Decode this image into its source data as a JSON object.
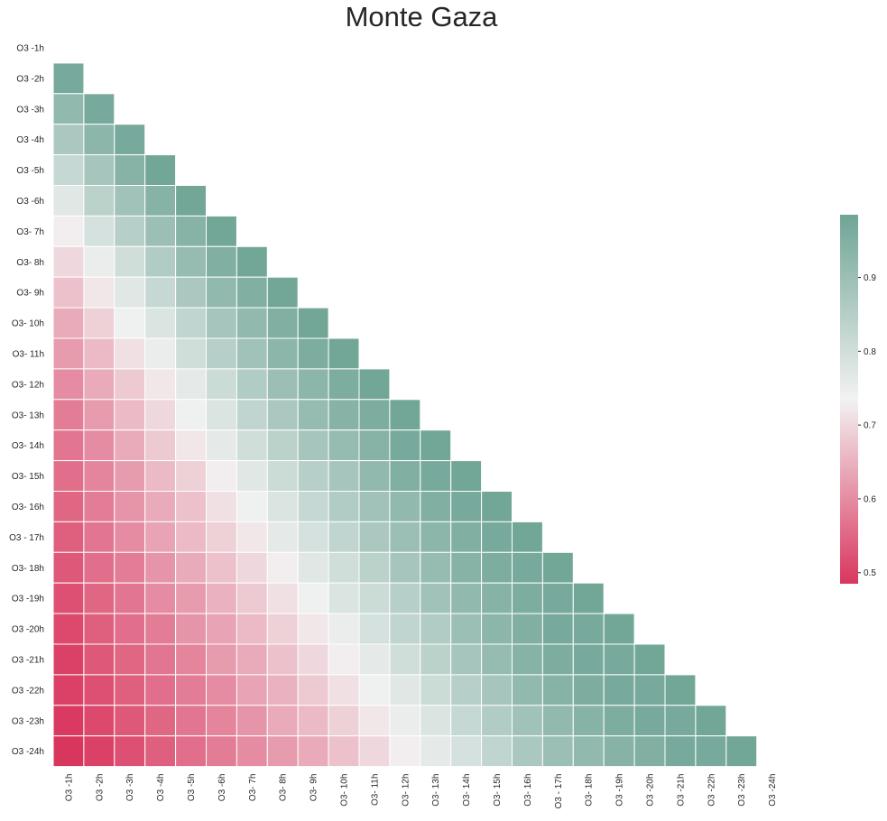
{
  "chart_data": {
    "type": "heatmap",
    "title": "Monte Gaza",
    "xlabel": "",
    "ylabel": "",
    "row_labels": [
      "O3 -1h",
      "O3 -2h",
      "O3 -3h",
      "O3 -4h",
      "O3 -5h",
      "O3 -6h",
      "O3- 7h",
      "O3- 8h",
      "O3- 9h",
      "O3- 10h",
      "O3- 11h",
      "O3- 12h",
      "O3- 13h",
      "O3- 14h",
      "O3- 15h",
      "O3- 16h",
      "O3 - 17h",
      "O3- 18h",
      "O3 -19h",
      "O3 -20h",
      "O3 -21h",
      "O3 -22h",
      "O3 -23h",
      "O3 -24h"
    ],
    "col_labels": [
      "O3 -1h",
      "O3 -2h",
      "O3 -3h",
      "O3 -4h",
      "O3 -5h",
      "O3 -6h",
      "O3- 7h",
      "O3- 8h",
      "O3- 9h",
      "O3- 10h",
      "O3- 11h",
      "O3- 12h",
      "O3- 13h",
      "O3- 14h",
      "O3- 15h",
      "O3- 16h",
      "O3 - 17h",
      "O3- 18h",
      "O3 -19h",
      "O3 -20h",
      "O3 -21h",
      "O3 -22h",
      "O3 -23h",
      "O3 -24h"
    ],
    "mask": "upper triangle including diagonal",
    "values": [
      [],
      [
        0.97
      ],
      [
        0.92,
        0.97
      ],
      [
        0.87,
        0.93,
        0.97
      ],
      [
        0.82,
        0.88,
        0.94,
        0.98
      ],
      [
        0.77,
        0.84,
        0.89,
        0.94,
        0.98
      ],
      [
        0.73,
        0.79,
        0.85,
        0.9,
        0.94,
        0.98
      ],
      [
        0.7,
        0.75,
        0.8,
        0.86,
        0.91,
        0.95,
        0.98
      ],
      [
        0.67,
        0.72,
        0.77,
        0.82,
        0.87,
        0.92,
        0.95,
        0.98
      ],
      [
        0.64,
        0.69,
        0.74,
        0.78,
        0.83,
        0.88,
        0.92,
        0.95,
        0.98
      ],
      [
        0.62,
        0.66,
        0.71,
        0.75,
        0.8,
        0.85,
        0.89,
        0.93,
        0.96,
        0.98
      ],
      [
        0.6,
        0.64,
        0.68,
        0.72,
        0.76,
        0.81,
        0.86,
        0.9,
        0.93,
        0.96,
        0.98
      ],
      [
        0.58,
        0.62,
        0.66,
        0.7,
        0.74,
        0.78,
        0.83,
        0.87,
        0.91,
        0.94,
        0.96,
        0.98
      ],
      [
        0.57,
        0.6,
        0.64,
        0.68,
        0.72,
        0.76,
        0.8,
        0.84,
        0.88,
        0.91,
        0.94,
        0.97,
        0.98
      ],
      [
        0.56,
        0.59,
        0.62,
        0.66,
        0.69,
        0.73,
        0.77,
        0.81,
        0.85,
        0.88,
        0.92,
        0.95,
        0.97,
        0.98
      ],
      [
        0.55,
        0.58,
        0.61,
        0.64,
        0.67,
        0.71,
        0.74,
        0.78,
        0.82,
        0.86,
        0.89,
        0.92,
        0.95,
        0.97,
        0.98
      ],
      [
        0.54,
        0.57,
        0.6,
        0.63,
        0.66,
        0.69,
        0.72,
        0.76,
        0.79,
        0.83,
        0.87,
        0.9,
        0.93,
        0.95,
        0.97,
        0.98
      ],
      [
        0.53,
        0.56,
        0.58,
        0.61,
        0.64,
        0.67,
        0.7,
        0.73,
        0.77,
        0.8,
        0.84,
        0.88,
        0.91,
        0.94,
        0.96,
        0.97,
        0.98
      ],
      [
        0.52,
        0.55,
        0.57,
        0.6,
        0.62,
        0.65,
        0.68,
        0.71,
        0.74,
        0.78,
        0.81,
        0.85,
        0.89,
        0.92,
        0.94,
        0.96,
        0.97,
        0.98
      ],
      [
        0.51,
        0.54,
        0.56,
        0.58,
        0.61,
        0.63,
        0.66,
        0.69,
        0.72,
        0.75,
        0.79,
        0.83,
        0.86,
        0.9,
        0.93,
        0.95,
        0.97,
        0.97,
        0.98
      ],
      [
        0.5,
        0.53,
        0.55,
        0.57,
        0.59,
        0.62,
        0.64,
        0.67,
        0.7,
        0.73,
        0.76,
        0.8,
        0.84,
        0.88,
        0.91,
        0.94,
        0.96,
        0.97,
        0.97,
        0.98
      ],
      [
        0.5,
        0.52,
        0.54,
        0.56,
        0.58,
        0.6,
        0.63,
        0.65,
        0.68,
        0.71,
        0.74,
        0.77,
        0.81,
        0.85,
        0.88,
        0.92,
        0.94,
        0.96,
        0.97,
        0.97,
        0.98
      ],
      [
        0.49,
        0.51,
        0.53,
        0.55,
        0.57,
        0.59,
        0.61,
        0.64,
        0.66,
        0.69,
        0.72,
        0.75,
        0.78,
        0.82,
        0.86,
        0.89,
        0.92,
        0.94,
        0.96,
        0.97,
        0.97,
        0.98
      ],
      [
        0.48,
        0.5,
        0.52,
        0.54,
        0.56,
        0.58,
        0.6,
        0.62,
        0.64,
        0.67,
        0.7,
        0.73,
        0.76,
        0.79,
        0.83,
        0.87,
        0.9,
        0.92,
        0.94,
        0.95,
        0.97,
        0.97,
        0.98
      ]
    ],
    "colorbar": {
      "vmin": 0.485,
      "vmax": 0.985,
      "ticks": [
        "0.5",
        "0.6",
        "0.7",
        "0.8",
        "0.9"
      ],
      "colormap": "diverging pink-white-teal",
      "low_color": "#d9365e",
      "mid_color": "#f2f2f2",
      "high_color": "#6fa596"
    },
    "grid": false
  }
}
